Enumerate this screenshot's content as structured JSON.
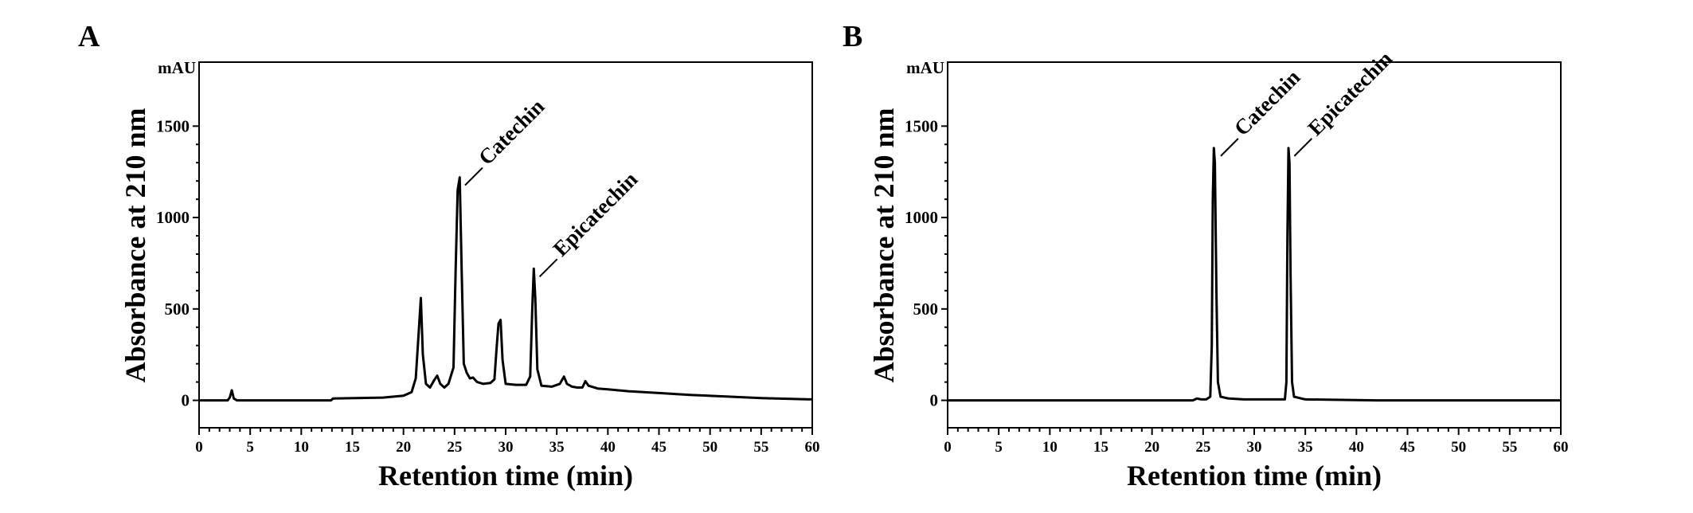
{
  "chart_data": [
    {
      "panel": "A",
      "type": "line",
      "ylabel": "Absorbance at 210 nm",
      "xlabel": "Retention time (min)",
      "y_unit": "mAU",
      "xlim": [
        0,
        60
      ],
      "ylim": [
        -150,
        1850
      ],
      "x_ticks": [
        "0",
        "5",
        "10",
        "15",
        "20",
        "25",
        "30",
        "35",
        "40",
        "45",
        "50",
        "55",
        "60"
      ],
      "y_ticks": [
        "0",
        "500",
        "1000",
        "1500"
      ],
      "grid": false,
      "annotations": [
        {
          "text": "Catechin",
          "x": 25.4,
          "y": 1220
        },
        {
          "text": "Epicatechin",
          "x": 32.7,
          "y": 720
        }
      ],
      "series": [
        {
          "values": [
            [
              0,
              0
            ],
            [
              2.8,
              0
            ],
            [
              3.0,
              15
            ],
            [
              3.2,
              55
            ],
            [
              3.4,
              10
            ],
            [
              3.7,
              0
            ],
            [
              12.9,
              0
            ],
            [
              13.1,
              10
            ],
            [
              18.0,
              15
            ],
            [
              20.0,
              25
            ],
            [
              20.8,
              45
            ],
            [
              21.2,
              120
            ],
            [
              21.5,
              380
            ],
            [
              21.7,
              560
            ],
            [
              21.9,
              250
            ],
            [
              22.2,
              90
            ],
            [
              22.6,
              70
            ],
            [
              23.0,
              110
            ],
            [
              23.3,
              135
            ],
            [
              23.6,
              90
            ],
            [
              24.0,
              70
            ],
            [
              24.4,
              90
            ],
            [
              24.9,
              180
            ],
            [
              25.1,
              700
            ],
            [
              25.3,
              1150
            ],
            [
              25.5,
              1220
            ],
            [
              25.7,
              700
            ],
            [
              25.9,
              200
            ],
            [
              26.2,
              150
            ],
            [
              26.5,
              120
            ],
            [
              26.8,
              125
            ],
            [
              27.2,
              100
            ],
            [
              27.8,
              90
            ],
            [
              28.5,
              95
            ],
            [
              28.9,
              115
            ],
            [
              29.1,
              280
            ],
            [
              29.3,
              420
            ],
            [
              29.5,
              440
            ],
            [
              29.7,
              220
            ],
            [
              30.0,
              90
            ],
            [
              31.0,
              85
            ],
            [
              32.0,
              85
            ],
            [
              32.4,
              130
            ],
            [
              32.6,
              500
            ],
            [
              32.75,
              720
            ],
            [
              32.9,
              560
            ],
            [
              33.1,
              170
            ],
            [
              33.5,
              80
            ],
            [
              34.5,
              75
            ],
            [
              35.3,
              90
            ],
            [
              35.7,
              130
            ],
            [
              36.0,
              90
            ],
            [
              36.5,
              75
            ],
            [
              37.0,
              70
            ],
            [
              37.5,
              70
            ],
            [
              37.8,
              105
            ],
            [
              38.1,
              80
            ],
            [
              39,
              65
            ],
            [
              40,
              60
            ],
            [
              42,
              50
            ],
            [
              45,
              40
            ],
            [
              48,
              30
            ],
            [
              52,
              20
            ],
            [
              55,
              12
            ],
            [
              60,
              5
            ]
          ]
        }
      ]
    },
    {
      "panel": "B",
      "type": "line",
      "ylabel": "Absorbance at 210 nm",
      "xlabel": "Retention time (min)",
      "y_unit": "mAU",
      "xlim": [
        0,
        60
      ],
      "ylim": [
        -150,
        1850
      ],
      "x_ticks": [
        "0",
        "5",
        "10",
        "15",
        "20",
        "25",
        "30",
        "35",
        "40",
        "45",
        "50",
        "55",
        "60"
      ],
      "y_ticks": [
        "0",
        "500",
        "1000",
        "1500"
      ],
      "grid": false,
      "annotations": [
        {
          "text": "Catechin",
          "x": 26.1,
          "y": 1380
        },
        {
          "text": "Epicatechin",
          "x": 33.3,
          "y": 1380
        }
      ],
      "series": [
        {
          "values": [
            [
              0,
              0
            ],
            [
              24.0,
              0
            ],
            [
              24.4,
              10
            ],
            [
              24.8,
              5
            ],
            [
              25.3,
              5
            ],
            [
              25.7,
              20
            ],
            [
              25.85,
              300
            ],
            [
              25.95,
              1100
            ],
            [
              26.05,
              1380
            ],
            [
              26.15,
              1300
            ],
            [
              26.3,
              600
            ],
            [
              26.45,
              100
            ],
            [
              26.7,
              20
            ],
            [
              27.5,
              10
            ],
            [
              29.0,
              5
            ],
            [
              33.0,
              5
            ],
            [
              33.15,
              100
            ],
            [
              33.25,
              900
            ],
            [
              33.35,
              1380
            ],
            [
              33.45,
              1300
            ],
            [
              33.55,
              700
            ],
            [
              33.7,
              100
            ],
            [
              33.9,
              20
            ],
            [
              35,
              5
            ],
            [
              42,
              0
            ],
            [
              60,
              0
            ]
          ]
        }
      ]
    }
  ]
}
